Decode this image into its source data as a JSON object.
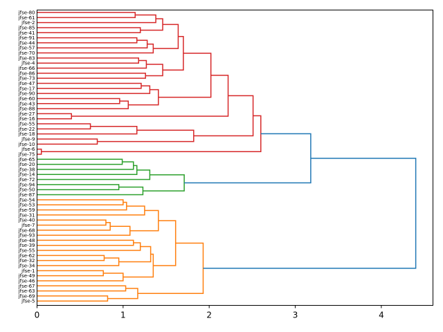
{
  "chart_data": {
    "type": "dendrogram",
    "orientation": "left",
    "xlim": [
      0,
      4.6
    ],
    "x_ticks": [
      0,
      1,
      2,
      3,
      4
    ],
    "x_tick_labels": [
      "0",
      "1",
      "2",
      "3",
      "4"
    ],
    "colors": {
      "red": "#d62728",
      "green": "#2ca02c",
      "orange": "#ff7f0e",
      "blue": "#1f77b4"
    },
    "leaves": [
      "jfse-80",
      "jfse-61",
      "jfse-2",
      "jfse-85",
      "jfse-41",
      "jfse-91",
      "jfse-44",
      "jfse-57",
      "jfse-70",
      "jfse-83",
      "jfse-4",
      "jfse-66",
      "jfse-86",
      "jfse-73",
      "jfse-47",
      "jfse-17",
      "jfse-90",
      "jfse-60",
      "jfse-43",
      "jfse-88",
      "jfse-27",
      "jfse-16",
      "jfse-55",
      "jfse-22",
      "jfse-18",
      "jfse-9",
      "jfse-10",
      "jfse-6",
      "jfse-75",
      "jfse-65",
      "jfse-20",
      "jfse-38",
      "jfse-14",
      "jfse-72",
      "jfse-94",
      "jfse-50",
      "jfse-87",
      "jfse-54",
      "jfse-53",
      "jfse-59",
      "jfse-31",
      "jfse-40",
      "jfse-7",
      "jfse-68",
      "jfse-93",
      "jfse-48",
      "jfse-39",
      "jfse-55",
      "jfse-62",
      "jfse-32",
      "jfse-34",
      "jfse-1",
      "jfse-49",
      "jfse-46",
      "jfse-67",
      "jfse-63",
      "jfse-69",
      "jfse-5"
    ],
    "links": [
      {
        "a": 0,
        "b": 1,
        "h": 1.14,
        "c": "red"
      },
      {
        "a": "L0",
        "b": 2,
        "h": 1.38,
        "c": "red"
      },
      {
        "a": 3,
        "b": 4,
        "h": 1.2,
        "c": "red"
      },
      {
        "a": "L1",
        "b": "L2",
        "h": 1.46,
        "c": "red"
      },
      {
        "a": 5,
        "b": 6,
        "h": 1.16,
        "c": "red"
      },
      {
        "a": "L4",
        "b": 7,
        "h": 1.28,
        "c": "red"
      },
      {
        "a": "L5",
        "b": 8,
        "h": 1.35,
        "c": "red"
      },
      {
        "a": "L3",
        "b": "L6",
        "h": 1.64,
        "c": "red"
      },
      {
        "a": 9,
        "b": 10,
        "h": 1.18,
        "c": "red"
      },
      {
        "a": "L8",
        "b": 11,
        "h": 1.27,
        "c": "red"
      },
      {
        "a": 12,
        "b": 13,
        "h": 1.26,
        "c": "red"
      },
      {
        "a": "L9",
        "b": "L10",
        "h": 1.46,
        "c": "red"
      },
      {
        "a": "L7",
        "b": "L11",
        "h": 1.7,
        "c": "red"
      },
      {
        "a": 14,
        "b": 15,
        "h": 1.21,
        "c": "red"
      },
      {
        "a": "L13",
        "b": 16,
        "h": 1.31,
        "c": "red"
      },
      {
        "a": 17,
        "b": 18,
        "h": 0.96,
        "c": "red"
      },
      {
        "a": "L15",
        "b": 19,
        "h": 1.06,
        "c": "red"
      },
      {
        "a": "L14",
        "b": "L16",
        "h": 1.41,
        "c": "red"
      },
      {
        "a": "L12",
        "b": "L17",
        "h": 2.02,
        "c": "red"
      },
      {
        "a": 20,
        "b": 21,
        "h": 0.4,
        "c": "red"
      },
      {
        "a": "L18",
        "b": "L19",
        "h": 2.22,
        "c": "red"
      },
      {
        "a": 22,
        "b": 23,
        "h": 0.62,
        "c": "red"
      },
      {
        "a": "L21",
        "b": 24,
        "h": 1.16,
        "c": "red"
      },
      {
        "a": 25,
        "b": 26,
        "h": 0.7,
        "c": "red"
      },
      {
        "a": "L22",
        "b": "L23",
        "h": 1.82,
        "c": "red"
      },
      {
        "a": "L20",
        "b": "L24",
        "h": 2.51,
        "c": "red"
      },
      {
        "a": 27,
        "b": 28,
        "h": 0.05,
        "c": "red"
      },
      {
        "a": "L25",
        "b": "L26",
        "h": 2.6,
        "c": "red"
      },
      {
        "a": 29,
        "b": 30,
        "h": 0.99,
        "c": "green"
      },
      {
        "a": "L28",
        "b": 31,
        "h": 1.12,
        "c": "green"
      },
      {
        "a": "L29",
        "b": 32,
        "h": 1.16,
        "c": "green"
      },
      {
        "a": "L30",
        "b": 33,
        "h": 1.31,
        "c": "green"
      },
      {
        "a": 34,
        "b": 35,
        "h": 0.95,
        "c": "green"
      },
      {
        "a": "L32",
        "b": 36,
        "h": 1.23,
        "c": "green"
      },
      {
        "a": "L31",
        "b": "L33",
        "h": 1.71,
        "c": "green"
      },
      {
        "a": "L27",
        "b": "L34",
        "h": 3.18,
        "c": "blue"
      },
      {
        "a": 37,
        "b": 38,
        "h": 1.0,
        "c": "orange"
      },
      {
        "a": "L36",
        "b": 39,
        "h": 1.04,
        "c": "orange"
      },
      {
        "a": "L37",
        "b": 40,
        "h": 1.25,
        "c": "orange"
      },
      {
        "a": 41,
        "b": 42,
        "h": 0.8,
        "c": "orange"
      },
      {
        "a": "L39",
        "b": 43,
        "h": 0.85,
        "c": "orange"
      },
      {
        "a": "L40",
        "b": 44,
        "h": 1.08,
        "c": "orange"
      },
      {
        "a": "L38",
        "b": "L41",
        "h": 1.41,
        "c": "orange"
      },
      {
        "a": 45,
        "b": 46,
        "h": 1.12,
        "c": "orange"
      },
      {
        "a": "L43",
        "b": 47,
        "h": 1.2,
        "c": "orange"
      },
      {
        "a": 48,
        "b": 49,
        "h": 0.78,
        "c": "orange"
      },
      {
        "a": "L45",
        "b": 50,
        "h": 0.95,
        "c": "orange"
      },
      {
        "a": "L44",
        "b": "L46",
        "h": 1.32,
        "c": "orange"
      },
      {
        "a": 51,
        "b": 52,
        "h": 0.77,
        "c": "orange"
      },
      {
        "a": "L48",
        "b": 53,
        "h": 1.0,
        "c": "orange"
      },
      {
        "a": "L47",
        "b": "L49",
        "h": 1.35,
        "c": "orange"
      },
      {
        "a": "L42",
        "b": "L50",
        "h": 1.61,
        "c": "orange"
      },
      {
        "a": 54,
        "b": 55,
        "h": 1.03,
        "c": "orange"
      },
      {
        "a": 56,
        "b": 57,
        "h": 0.82,
        "c": "orange"
      },
      {
        "a": "L52",
        "b": "L53",
        "h": 1.17,
        "c": "orange"
      },
      {
        "a": "L51",
        "b": "L54",
        "h": 1.93,
        "c": "orange"
      },
      {
        "a": "L35",
        "b": "L55",
        "h": 4.4,
        "c": "blue"
      }
    ]
  }
}
